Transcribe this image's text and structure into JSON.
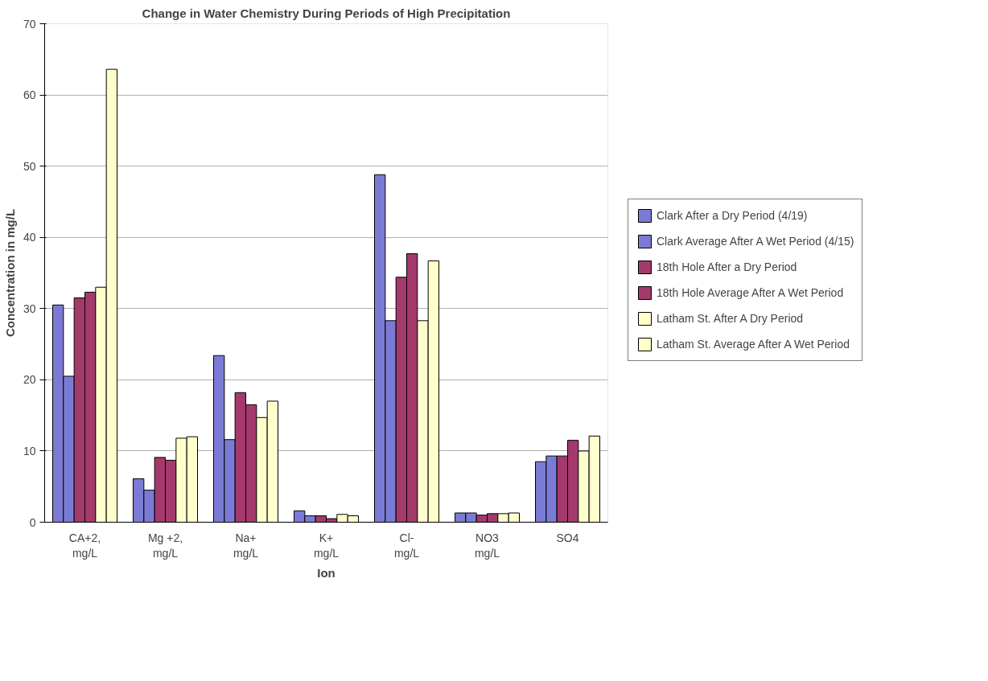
{
  "chart_data": {
    "type": "bar",
    "title": "Change in Water Chemistry During Periods of High Precipitation",
    "xlabel": "Ion",
    "ylabel": "Concentration in mg/L",
    "categories": [
      "CA+2, mg/L",
      "Mg +2, mg/L",
      "Na+ mg/L",
      "K+ mg/L",
      "Cl- mg/L",
      "NO3 mg/L",
      "SO4"
    ],
    "series": [
      {
        "name": "Clark After a Dry Period (4/19)",
        "color": "#7b7bd6",
        "values": [
          30.5,
          6.1,
          23.4,
          1.6,
          48.8,
          1.3,
          8.5
        ]
      },
      {
        "name": "Clark Average After A Wet Period (4/15)",
        "color": "#7b7bd6",
        "values": [
          20.5,
          4.5,
          11.6,
          0.9,
          28.3,
          1.3,
          9.3
        ]
      },
      {
        "name": "18th Hole After a Dry Period",
        "color": "#a33a6b",
        "values": [
          31.5,
          9.1,
          18.2,
          0.9,
          34.4,
          1.0,
          9.3
        ]
      },
      {
        "name": "18th Hole Average After A Wet Period",
        "color": "#a33a6b",
        "values": [
          32.3,
          8.7,
          16.5,
          0.5,
          37.7,
          1.2,
          11.5
        ]
      },
      {
        "name": "Latham St. After A Dry Period",
        "color": "#ffffcc",
        "values": [
          33.0,
          11.8,
          14.7,
          1.1,
          28.3,
          1.2,
          10.0
        ]
      },
      {
        "name": "Latham St. Average After A Wet Period",
        "color": "#ffffcc",
        "values": [
          63.6,
          12.0,
          17.0,
          0.9,
          36.7,
          1.3,
          12.1
        ]
      }
    ],
    "ylim": [
      0,
      70
    ],
    "yticks": [
      0,
      10,
      20,
      30,
      40,
      50,
      60,
      70
    ],
    "grid": "y",
    "legend": "right"
  }
}
